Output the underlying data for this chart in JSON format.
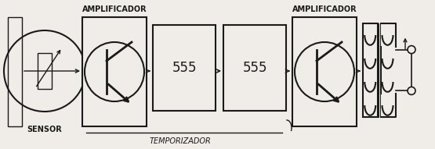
{
  "fig_width": 5.55,
  "fig_height": 1.91,
  "dpi": 100,
  "bg_color": "#f0ede8",
  "line_color": "#1a1a1a",
  "label_sensor": "SENSOR",
  "label_amp1": "AMPLIFICADOR",
  "label_amp2": "AMPLIFICADOR",
  "label_temporizador": "TEMPORIZADOR",
  "label_555a": "555",
  "label_555b": "555"
}
